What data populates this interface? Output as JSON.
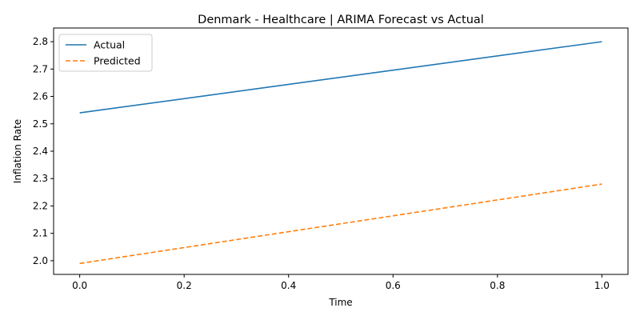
{
  "chart_data": {
    "type": "line",
    "title": "Denmark - Healthcare | ARIMA Forecast vs Actual",
    "xlabel": "Time",
    "ylabel": "Inflation Rate",
    "xlim": [
      -0.05,
      1.05
    ],
    "ylim": [
      1.95,
      2.85
    ],
    "xticks": [
      0.0,
      0.2,
      0.4,
      0.6,
      0.8,
      1.0
    ],
    "xtick_labels": [
      "0.0",
      "0.2",
      "0.4",
      "0.6",
      "0.8",
      "1.0"
    ],
    "yticks": [
      2.0,
      2.1,
      2.2,
      2.3,
      2.4,
      2.5,
      2.6,
      2.7,
      2.8
    ],
    "ytick_labels": [
      "2.0",
      "2.1",
      "2.2",
      "2.3",
      "2.4",
      "2.5",
      "2.6",
      "2.7",
      "2.8"
    ],
    "grid": false,
    "legend_position": "top-left",
    "series": [
      {
        "name": "Actual",
        "color": "#1f77b4",
        "dash": "solid",
        "x": [
          0.0,
          1.0
        ],
        "values": [
          2.54,
          2.8
        ]
      },
      {
        "name": "Predicted",
        "color": "#ff7f0e",
        "dash": "dashed",
        "x": [
          0.0,
          1.0
        ],
        "values": [
          1.99,
          2.28
        ]
      }
    ]
  }
}
